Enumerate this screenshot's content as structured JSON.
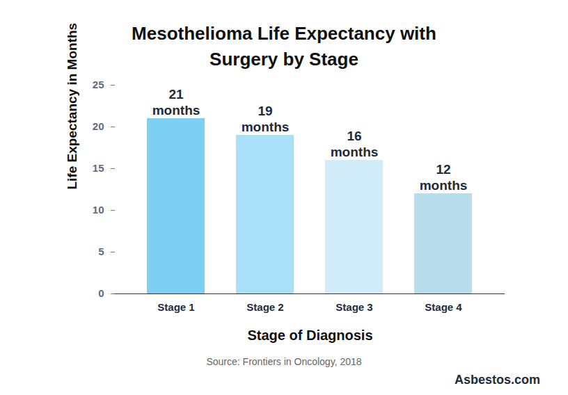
{
  "chart_data": {
    "type": "bar",
    "title": "Mesothelioma Life Expectancy with Surgery by Stage",
    "categories": [
      "Stage 1",
      "Stage 2",
      "Stage 3",
      "Stage 4"
    ],
    "values": [
      21,
      19,
      16,
      12
    ],
    "value_labels": [
      "21 months",
      "19 months",
      "16 months",
      "12 months"
    ],
    "data_labels": true,
    "colors": [
      "#7dd0f3",
      "#a9dff7",
      "#d0ecf8",
      "#b7dcea"
    ],
    "ylim": [
      0,
      25
    ],
    "yticks": [
      0,
      5,
      10,
      15,
      20,
      25
    ],
    "x_label": "Stage of Diagnosis",
    "y_label": "Life Expectancy in Months",
    "source": "Source: Frontiers in Oncology, 2018",
    "logo": "Asbestos.com"
  }
}
